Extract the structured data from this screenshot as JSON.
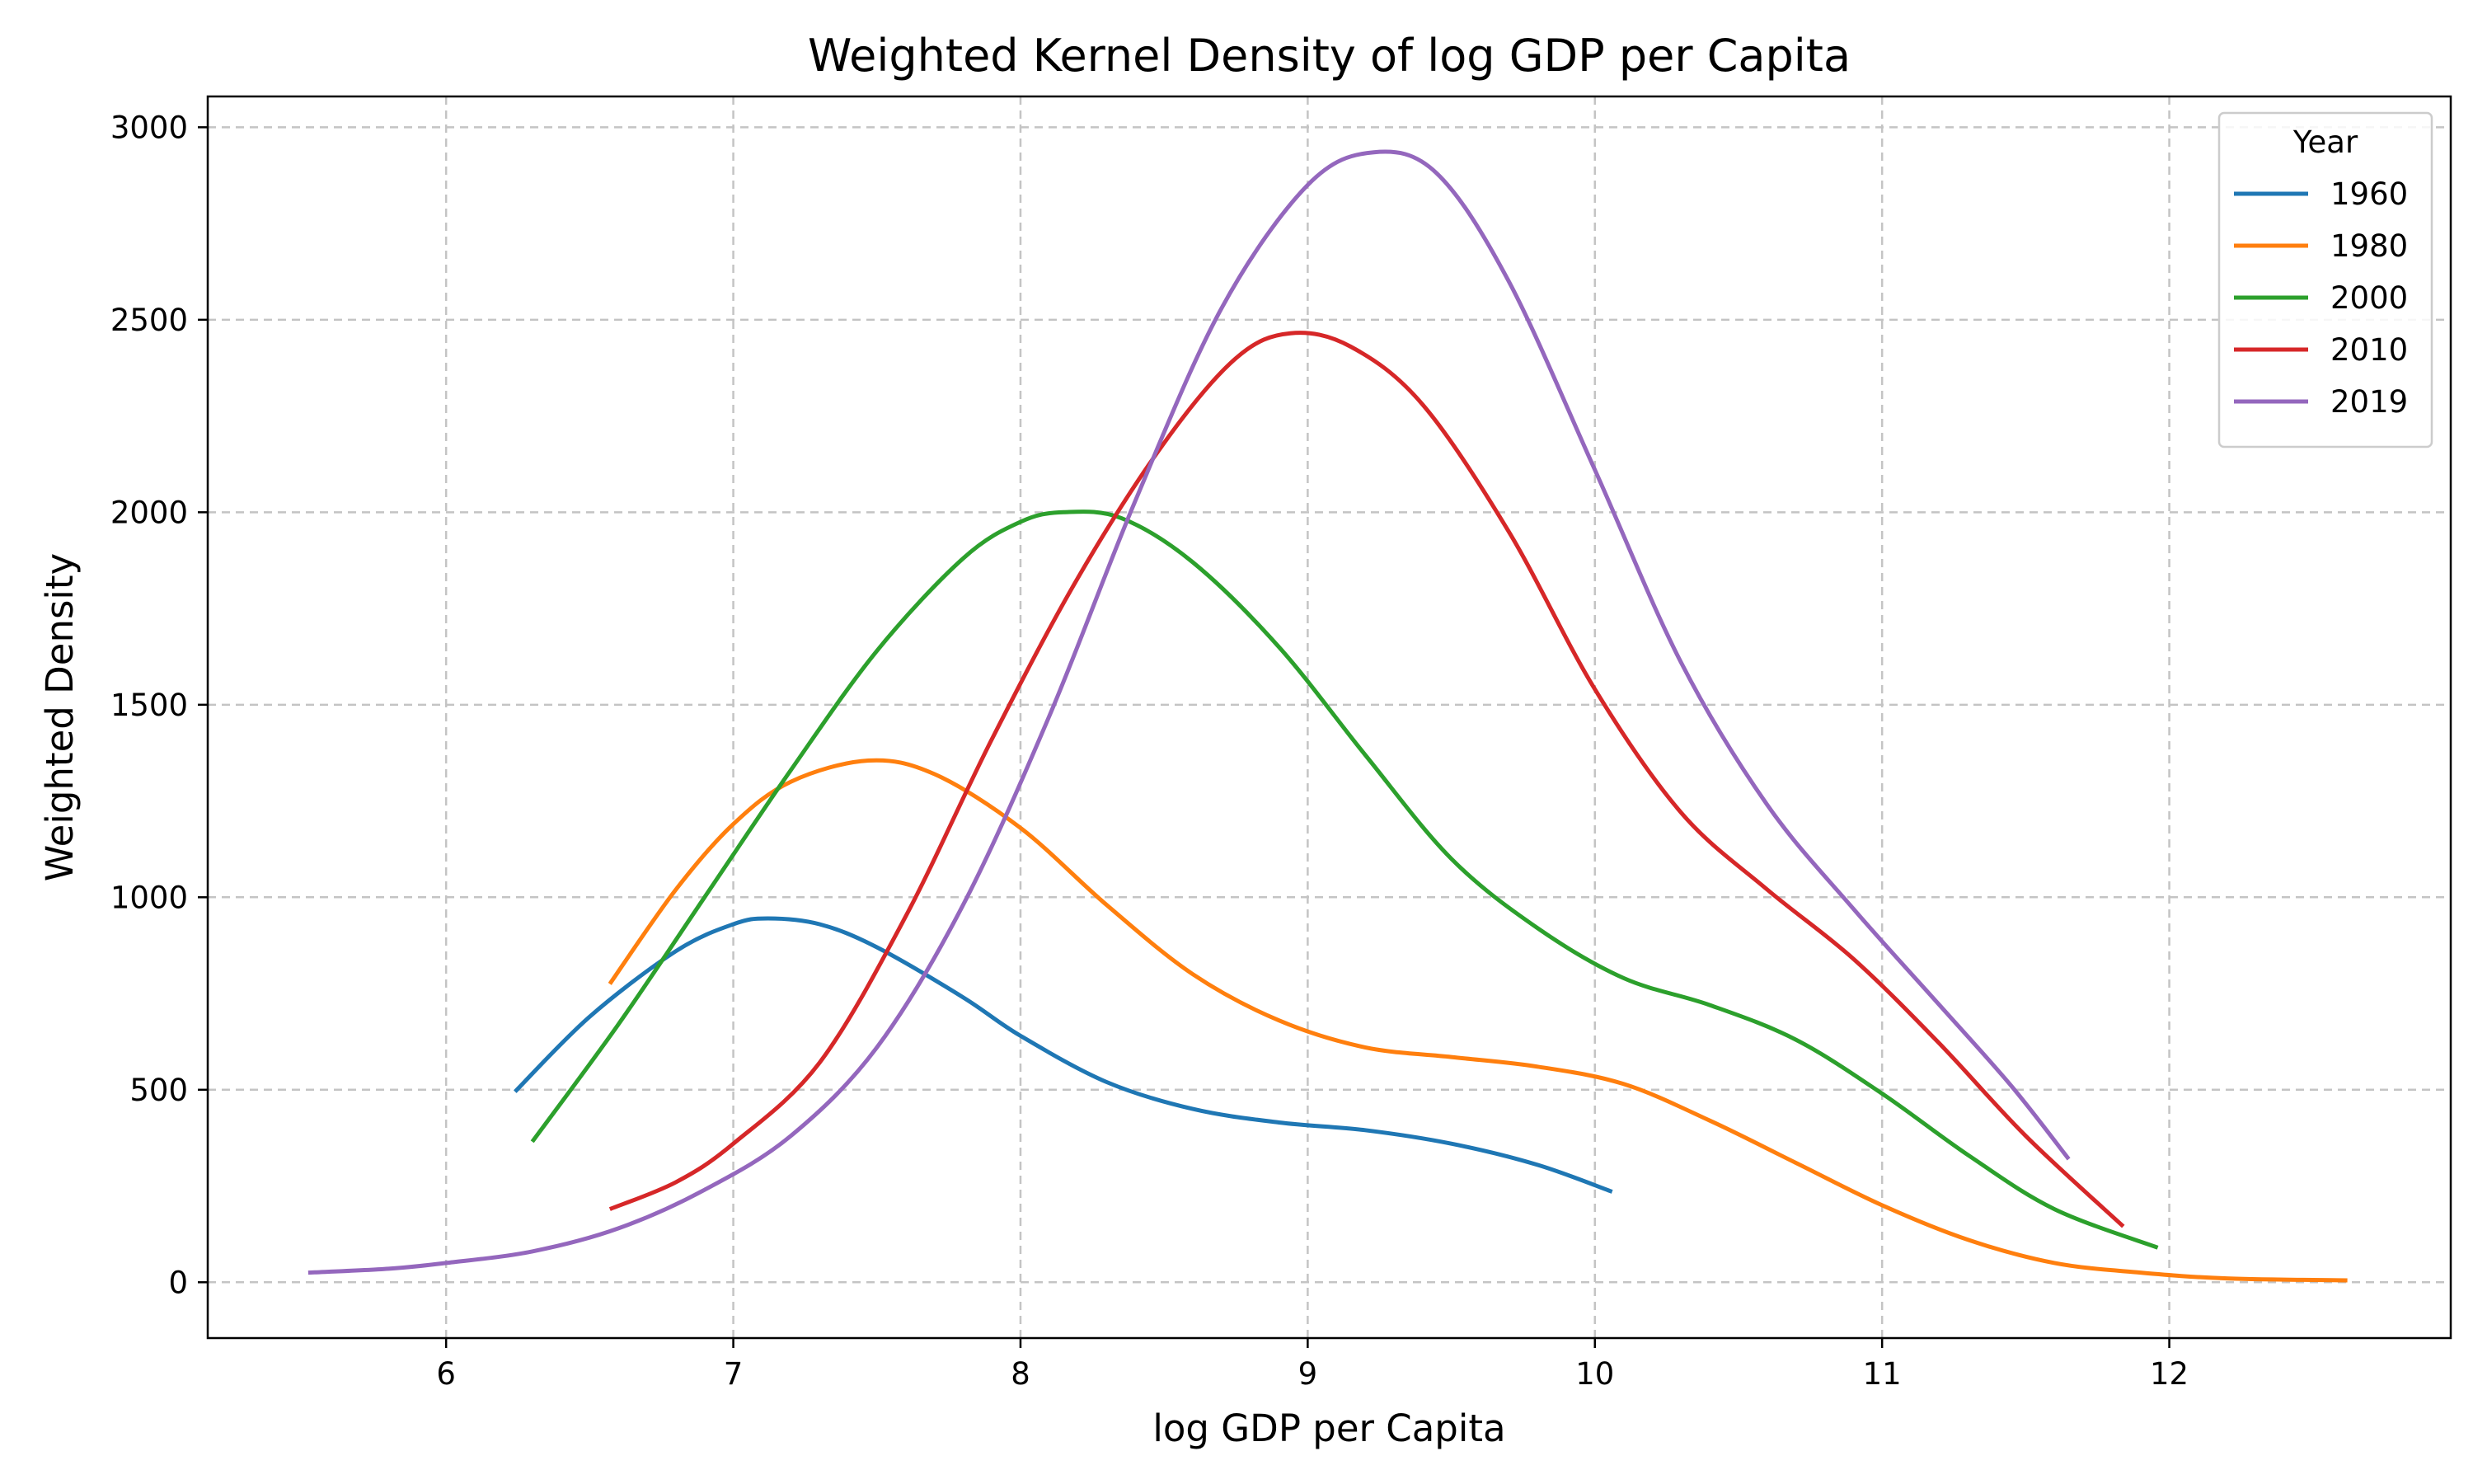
{
  "chart_data": {
    "type": "line",
    "title": "Weighted Kernel Density of log GDP per Capita",
    "xlabel": "log GDP per Capita",
    "ylabel": "Weighted Density",
    "xlim": [
      5.17,
      12.98
    ],
    "ylim": [
      -145,
      3080
    ],
    "xticks": [
      6,
      7,
      8,
      9,
      10,
      11,
      12
    ],
    "yticks": [
      0,
      500,
      1000,
      1500,
      2000,
      2500,
      3000
    ],
    "grid": true,
    "legend": {
      "title": "Year",
      "placement": "top-right"
    },
    "series": [
      {
        "name": "1960",
        "color": "#1f77b4",
        "points": [
          [
            6.24,
            495
          ],
          [
            6.5,
            690
          ],
          [
            6.8,
            860
          ],
          [
            7.0,
            930
          ],
          [
            7.12,
            945
          ],
          [
            7.3,
            930
          ],
          [
            7.5,
            870
          ],
          [
            7.8,
            740
          ],
          [
            8.0,
            640
          ],
          [
            8.3,
            520
          ],
          [
            8.6,
            450
          ],
          [
            8.9,
            415
          ],
          [
            9.2,
            395
          ],
          [
            9.5,
            360
          ],
          [
            9.8,
            305
          ],
          [
            10.06,
            235
          ]
        ]
      },
      {
        "name": "1980",
        "color": "#ff7f0e",
        "points": [
          [
            6.57,
            775
          ],
          [
            6.8,
            1020
          ],
          [
            7.0,
            1190
          ],
          [
            7.2,
            1300
          ],
          [
            7.47,
            1355
          ],
          [
            7.7,
            1320
          ],
          [
            8.0,
            1180
          ],
          [
            8.3,
            980
          ],
          [
            8.6,
            800
          ],
          [
            8.9,
            680
          ],
          [
            9.2,
            610
          ],
          [
            9.5,
            585
          ],
          [
            9.8,
            560
          ],
          [
            10.1,
            515
          ],
          [
            10.4,
            420
          ],
          [
            10.7,
            310
          ],
          [
            11.0,
            200
          ],
          [
            11.3,
            110
          ],
          [
            11.6,
            50
          ],
          [
            11.9,
            25
          ],
          [
            12.2,
            10
          ],
          [
            12.62,
            5
          ]
        ]
      },
      {
        "name": "2000",
        "color": "#2ca02c",
        "points": [
          [
            6.3,
            365
          ],
          [
            6.6,
            670
          ],
          [
            6.9,
            1000
          ],
          [
            7.2,
            1330
          ],
          [
            7.5,
            1640
          ],
          [
            7.8,
            1880
          ],
          [
            8.0,
            1975
          ],
          [
            8.15,
            2000
          ],
          [
            8.35,
            1985
          ],
          [
            8.6,
            1870
          ],
          [
            8.9,
            1650
          ],
          [
            9.2,
            1370
          ],
          [
            9.5,
            1100
          ],
          [
            9.8,
            920
          ],
          [
            10.1,
            790
          ],
          [
            10.4,
            720
          ],
          [
            10.7,
            630
          ],
          [
            11.0,
            490
          ],
          [
            11.3,
            330
          ],
          [
            11.6,
            190
          ],
          [
            11.96,
            90
          ]
        ]
      },
      {
        "name": "2010",
        "color": "#d62728",
        "points": [
          [
            6.57,
            190
          ],
          [
            6.8,
            260
          ],
          [
            7.0,
            360
          ],
          [
            7.3,
            570
          ],
          [
            7.6,
            950
          ],
          [
            7.9,
            1410
          ],
          [
            8.2,
            1830
          ],
          [
            8.5,
            2180
          ],
          [
            8.75,
            2400
          ],
          [
            8.94,
            2465
          ],
          [
            9.15,
            2430
          ],
          [
            9.4,
            2280
          ],
          [
            9.7,
            1950
          ],
          [
            10.0,
            1540
          ],
          [
            10.3,
            1220
          ],
          [
            10.6,
            1020
          ],
          [
            10.9,
            840
          ],
          [
            11.2,
            620
          ],
          [
            11.5,
            380
          ],
          [
            11.84,
            145
          ]
        ]
      },
      {
        "name": "2019",
        "color": "#9467bd",
        "points": [
          [
            5.52,
            25
          ],
          [
            5.8,
            35
          ],
          [
            6.0,
            50
          ],
          [
            6.3,
            80
          ],
          [
            6.6,
            140
          ],
          [
            6.9,
            240
          ],
          [
            7.2,
            380
          ],
          [
            7.5,
            610
          ],
          [
            7.8,
            980
          ],
          [
            8.1,
            1470
          ],
          [
            8.4,
            2030
          ],
          [
            8.7,
            2530
          ],
          [
            9.0,
            2850
          ],
          [
            9.23,
            2935
          ],
          [
            9.45,
            2880
          ],
          [
            9.7,
            2600
          ],
          [
            10.0,
            2110
          ],
          [
            10.3,
            1610
          ],
          [
            10.6,
            1240
          ],
          [
            10.9,
            970
          ],
          [
            11.2,
            720
          ],
          [
            11.45,
            510
          ],
          [
            11.65,
            320
          ]
        ]
      }
    ]
  }
}
